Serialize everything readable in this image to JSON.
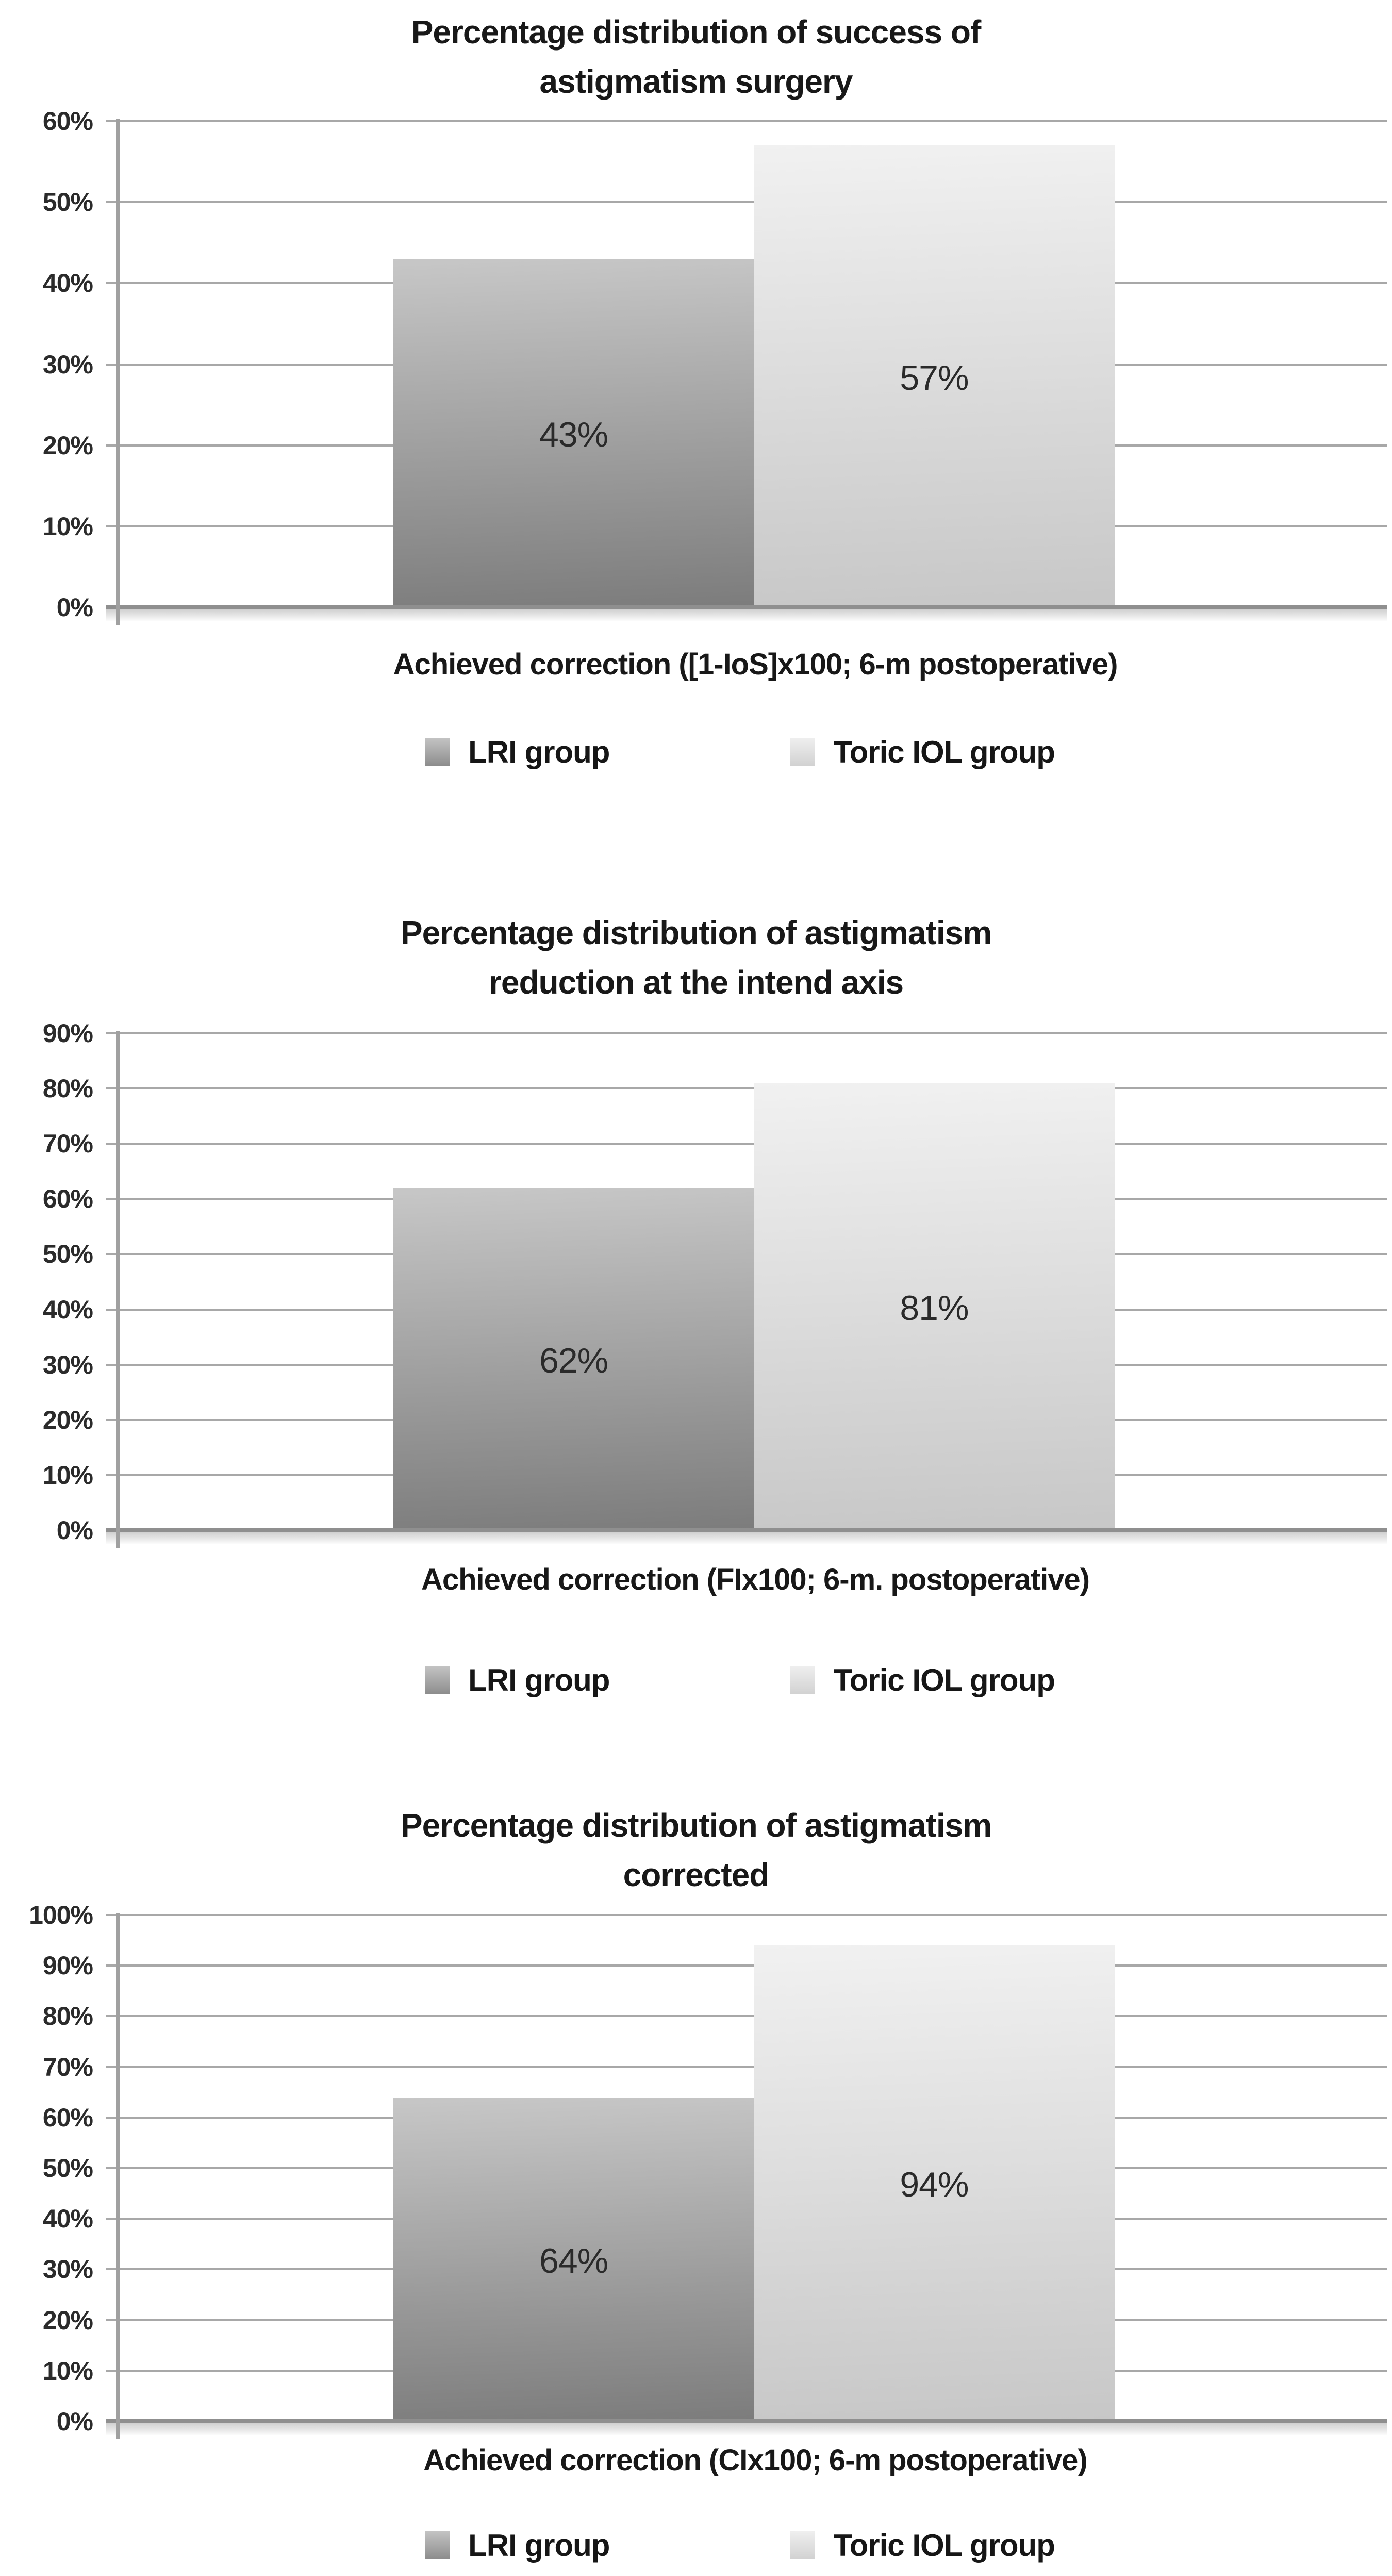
{
  "figure": {
    "description": "Three stacked grayscale bar charts comparing LRI group and Toric IOL group outcomes of astigmatism surgery at 6 months postoperative",
    "background_color": "#ffffff",
    "colors": {
      "lri_bar_top": "#c7c7c7",
      "lri_bar_bottom": "#7c7c7c",
      "toric_bar_top": "#f1f1f1",
      "toric_bar_bottom": "#c7c7c7",
      "gridline": "#a8a8a8",
      "axis": "#a0a0a0",
      "text": "#1c1c1c"
    }
  },
  "chart_data": [
    {
      "type": "bar",
      "title": "Percentage distribution of success of astigmatism surgery",
      "title_lines": [
        "Percentage distribution of success of",
        "astigmatism surgery"
      ],
      "xlabel": "Achieved correction ([1-IoS]x100; 6-m postoperative)",
      "ylabel": "",
      "ylim": [
        0,
        60
      ],
      "y_tick_step": 10,
      "y_tick_suffix": "%",
      "grid": true,
      "legend_position": "bottom",
      "categories": [
        "Achieved correction ([1-IoS]x100; 6-m postoperative)"
      ],
      "series": [
        {
          "name": "LRI group",
          "value": 43,
          "label": "43%"
        },
        {
          "name": "Toric IOL group",
          "value": 57,
          "label": "57%"
        }
      ]
    },
    {
      "type": "bar",
      "title": "Percentage distribution of astigmatism reduction at the intend axis",
      "title_lines": [
        "Percentage distribution of astigmatism",
        "reduction at the intend axis"
      ],
      "xlabel": "Achieved correction (FIx100; 6-m. postoperative)",
      "ylabel": "",
      "ylim": [
        0,
        90
      ],
      "y_tick_step": 10,
      "y_tick_suffix": "%",
      "grid": true,
      "legend_position": "bottom",
      "categories": [
        "Achieved correction (FIx100; 6-m. postoperative)"
      ],
      "series": [
        {
          "name": "LRI group",
          "value": 62,
          "label": "62%"
        },
        {
          "name": "Toric IOL group",
          "value": 81,
          "label": "81%"
        }
      ]
    },
    {
      "type": "bar",
      "title": "Percentage distribution of astigmatism corrected",
      "title_lines": [
        "Percentage distribution of astigmatism",
        "corrected"
      ],
      "xlabel": "Achieved correction (CIx100; 6-m postoperative)",
      "ylabel": "",
      "ylim": [
        0,
        100
      ],
      "y_tick_step": 10,
      "y_tick_suffix": "%",
      "grid": true,
      "legend_position": "bottom",
      "categories": [
        "Achieved correction (CIx100; 6-m postoperative)"
      ],
      "series": [
        {
          "name": "LRI group",
          "value": 64,
          "label": "64%"
        },
        {
          "name": "Toric IOL group",
          "value": 94,
          "label": "94%"
        }
      ]
    }
  ]
}
